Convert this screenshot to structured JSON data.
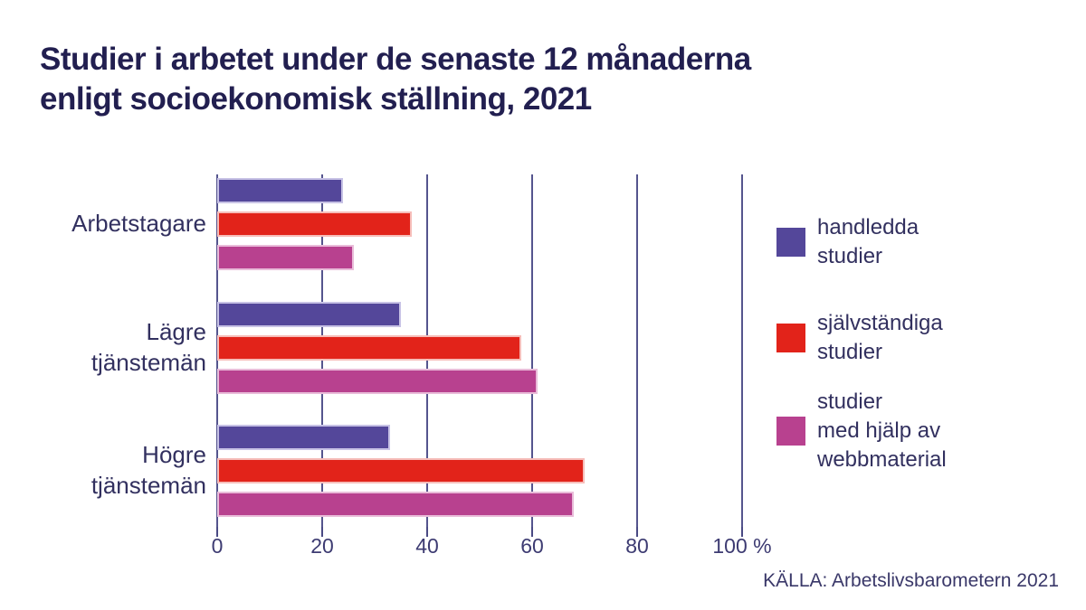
{
  "title": "Studier i arbetet under de senaste 12 månaderna\nenligt socioekonomisk ställning, 2021",
  "source": "KÄLLA: Arbetslivsbarometern 2021",
  "colors": {
    "title_text": "#221F50",
    "body_text": "#32305F",
    "gridline": "#55558E",
    "axis": "#4A4A84",
    "background": "#FFFFFF"
  },
  "chart_data": {
    "type": "bar",
    "orientation": "horizontal",
    "title": "Studier i arbetet under de senaste 12 månaderna enligt socioekonomisk ställning, 2021",
    "categories": [
      "Arbetstagare",
      "Lägre tjänstemän",
      "Högre tjänstemän"
    ],
    "category_labels": [
      "Arbetstagare",
      "Lägre\ntjänstemän",
      "Högre\ntjänstemän"
    ],
    "series": [
      {
        "name": "handledda studier",
        "color": "#54479A",
        "border_color": "#C7C2E5",
        "values": [
          24,
          35,
          33
        ]
      },
      {
        "name": "självständiga studier",
        "color": "#E2231A",
        "border_color": "#F6BDB9",
        "values": [
          37,
          58,
          70
        ]
      },
      {
        "name": "studier med hjälp av webbmaterial",
        "color": "#B8418F",
        "border_color": "#E9BCD9",
        "values": [
          26,
          61,
          68
        ]
      }
    ],
    "xlabel": "",
    "ylabel": "",
    "xlim": [
      0,
      100
    ],
    "x_ticks": [
      0,
      20,
      40,
      60,
      80,
      100
    ],
    "x_tick_labels": [
      "0",
      "20",
      "40",
      "60",
      "80",
      "100 %"
    ],
    "unit": "%",
    "grid": true,
    "legend_position": "right"
  },
  "legend": {
    "items": [
      {
        "label": "handledda\nstudier",
        "color": "#54479A"
      },
      {
        "label": "självständiga\nstudier",
        "color": "#E2231A"
      },
      {
        "label": "studier\nmed hjälp av\nwebbmaterial",
        "color": "#B8418F"
      }
    ]
  }
}
